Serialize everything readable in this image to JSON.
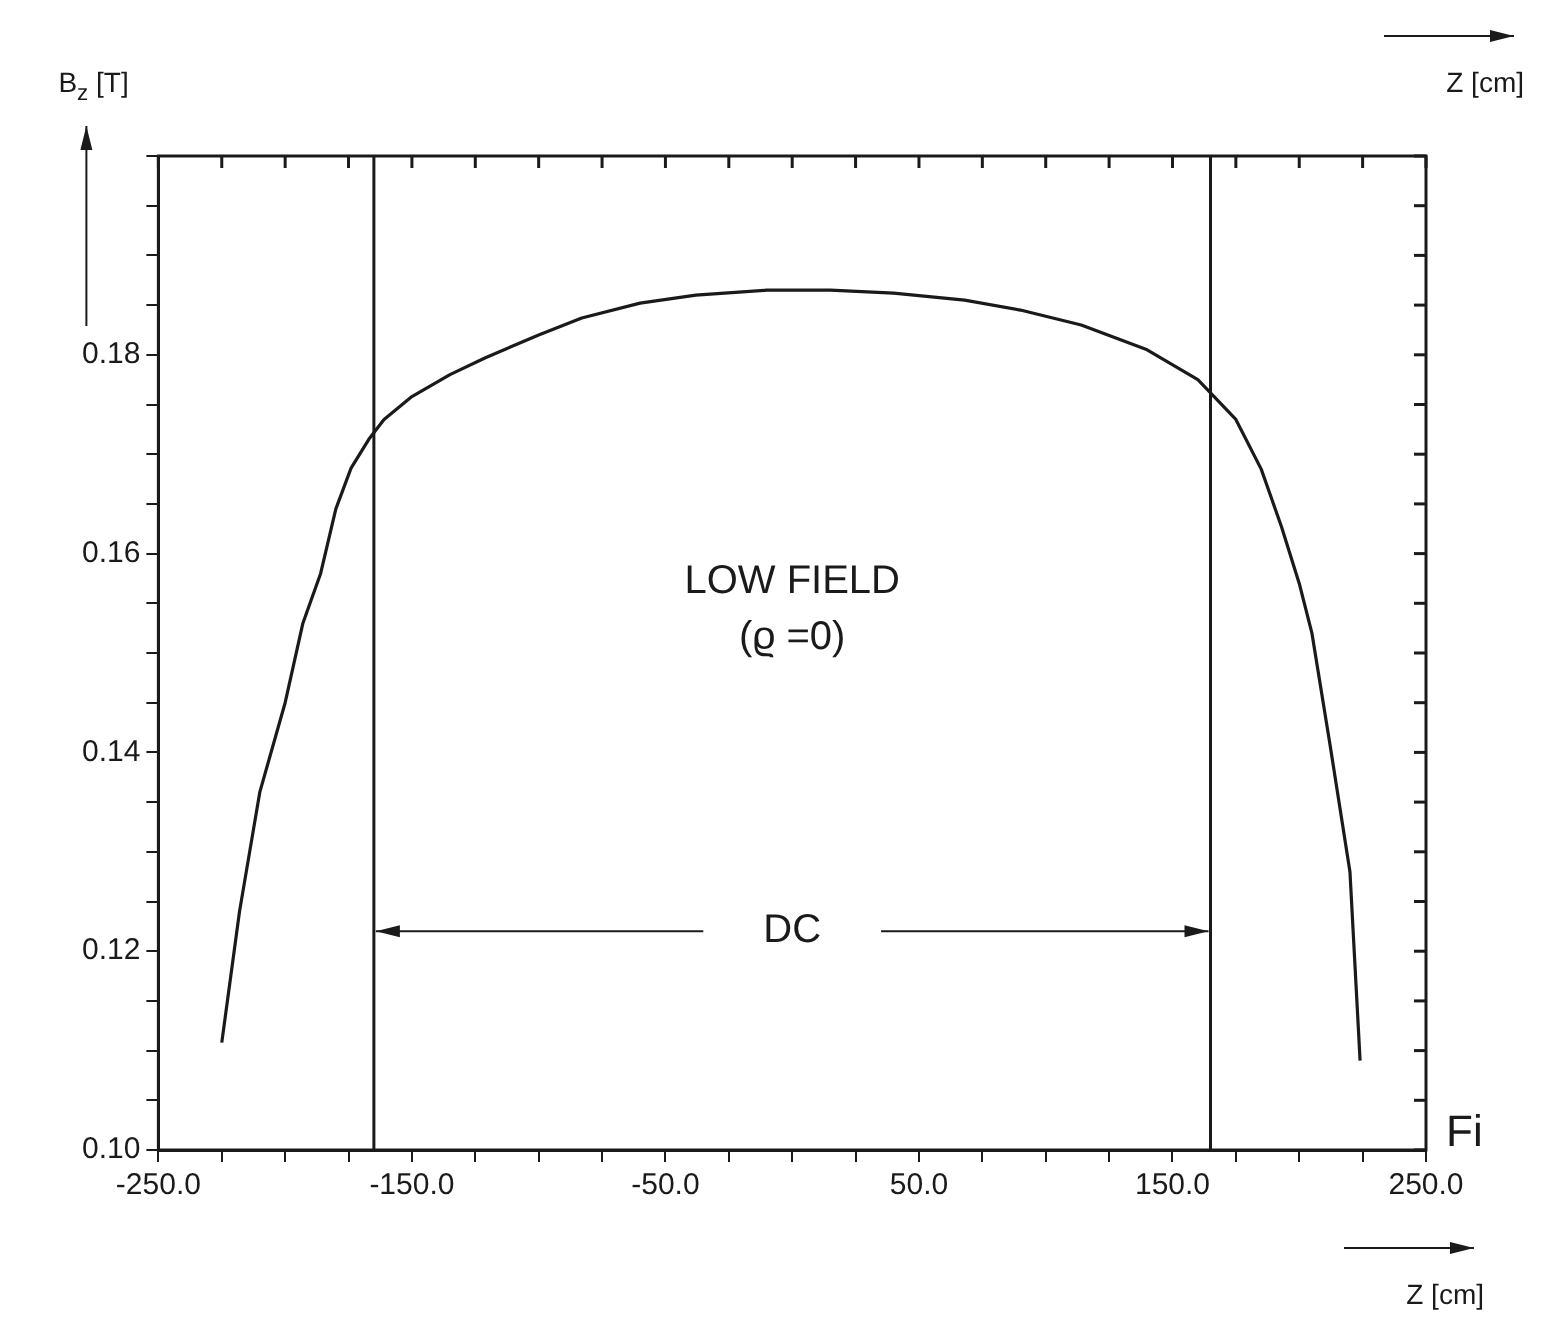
{
  "chart_data": {
    "type": "line",
    "ylabel": "B$_{z}$ [T]",
    "xlabel": "Z [cm]",
    "series": [
      {
        "color": "#1a1a1a",
        "x": [
          -225,
          -218,
          -210,
          -200,
          -193,
          -186,
          -180,
          -174,
          -167,
          -161,
          -150,
          -135,
          -121,
          -100,
          -83,
          -60,
          -38,
          -10,
          15,
          40,
          68,
          90,
          114,
          140,
          160,
          175,
          185,
          193,
          200,
          205,
          212,
          220,
          224
        ],
        "values": [
          0.1108,
          0.124,
          0.136,
          0.145,
          0.153,
          0.158,
          0.1645,
          0.1686,
          0.1715,
          0.1735,
          0.1758,
          0.178,
          0.1797,
          0.182,
          0.1837,
          0.1852,
          0.186,
          0.1865,
          0.1865,
          0.1862,
          0.1855,
          0.1845,
          0.183,
          0.1805,
          0.1775,
          0.1735,
          0.1685,
          0.1627,
          0.157,
          0.152,
          0.141,
          0.128,
          0.109
        ]
      }
    ],
    "xlim": [
      -250,
      250
    ],
    "xticks": [
      {
        "value": -250,
        "label": "-250.0"
      },
      {
        "value": -225,
        "label": null
      },
      {
        "value": -200,
        "label": null
      },
      {
        "value": -175,
        "label": null
      },
      {
        "value": -150,
        "label": "-150.0"
      },
      {
        "value": -125,
        "label": null
      },
      {
        "value": -100,
        "label": null
      },
      {
        "value": -75,
        "label": null
      },
      {
        "value": -50,
        "label": "-50.0"
      },
      {
        "value": -25,
        "label": null
      },
      {
        "value": 0,
        "label": null
      },
      {
        "value": 25,
        "label": null
      },
      {
        "value": 50,
        "label": "50.0"
      },
      {
        "value": 75,
        "label": null
      },
      {
        "value": 100,
        "label": null
      },
      {
        "value": 125,
        "label": null
      },
      {
        "value": 150,
        "label": "150.0"
      },
      {
        "value": 175,
        "label": null
      },
      {
        "value": 200,
        "label": null
      },
      {
        "value": 225,
        "label": null
      },
      {
        "value": 250,
        "label": "250.0"
      }
    ],
    "ylim": [
      0.1,
      0.2
    ],
    "yticks": [
      {
        "value": 0.1,
        "label": "0.10"
      },
      {
        "value": 0.105,
        "label": null
      },
      {
        "value": 0.11,
        "label": null
      },
      {
        "value": 0.115,
        "label": null
      },
      {
        "value": 0.12,
        "label": "0.12"
      },
      {
        "value": 0.125,
        "label": null
      },
      {
        "value": 0.13,
        "label": null
      },
      {
        "value": 0.135,
        "label": null
      },
      {
        "value": 0.14,
        "label": "0.14"
      },
      {
        "value": 0.145,
        "label": null
      },
      {
        "value": 0.15,
        "label": null
      },
      {
        "value": 0.155,
        "label": null
      },
      {
        "value": 0.16,
        "label": "0.16"
      },
      {
        "value": 0.165,
        "label": null
      },
      {
        "value": 0.17,
        "label": null
      },
      {
        "value": 0.175,
        "label": null
      },
      {
        "value": 0.18,
        "label": "0.18"
      },
      {
        "value": 0.185,
        "label": null
      },
      {
        "value": 0.19,
        "label": null
      },
      {
        "value": 0.195,
        "label": null
      },
      {
        "value": 0.2,
        "label": null
      }
    ],
    "ref_lines": [
      {
        "axis": "x",
        "value": -165,
        "color": "#1a1a1a"
      },
      {
        "axis": "x",
        "value": 165,
        "color": "#1a1a1a"
      }
    ],
    "annotations": [
      "LOW FIELD",
      "(ϱ =0)",
      "DC",
      "Fi"
    ],
    "grid": false,
    "legend": false,
    "marker": "none",
    "line_style": "solid"
  }
}
